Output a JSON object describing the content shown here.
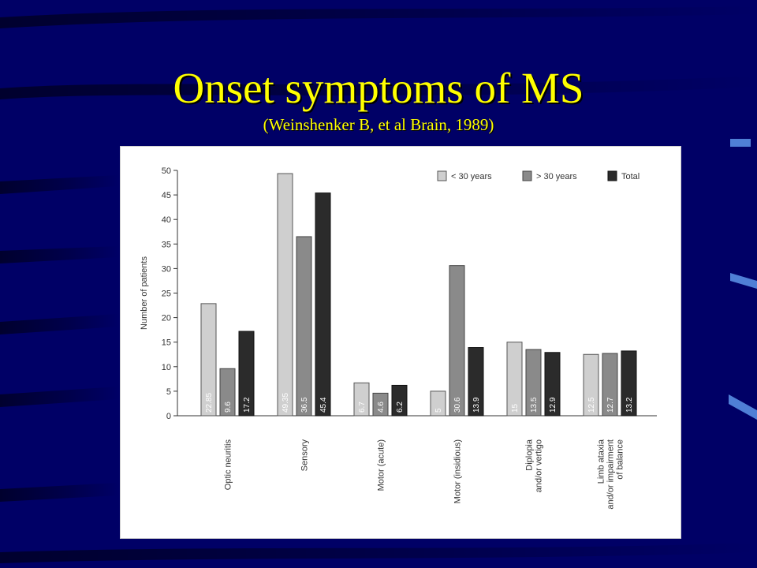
{
  "slide": {
    "title": "Onset symptoms of MS",
    "subtitle": "(Weinshenker B, et al Brain, 1989)"
  },
  "colors": {
    "background": "#000066",
    "title": "#ffff00",
    "under_30": "#cfcfcf",
    "over_30": "#8a8a8a",
    "total": "#2b2b2b"
  },
  "chart_data": {
    "type": "bar",
    "ylabel": "Number of patients",
    "xlabel": "",
    "ylim": [
      0,
      50
    ],
    "yticks": [
      0,
      5,
      10,
      15,
      20,
      25,
      30,
      35,
      40,
      45,
      50
    ],
    "legend_position": "top-right",
    "grid": false,
    "categories": [
      [
        "Optic neuritis"
      ],
      [
        "Sensory"
      ],
      [
        "Motor (acute)"
      ],
      [
        "Motor (insidious)"
      ],
      [
        "Diplopia",
        "and/or vertigo"
      ],
      [
        "Limb ataxia",
        "and/or impairment",
        "of balance"
      ]
    ],
    "series": [
      {
        "name": "< 30 years",
        "values": [
          22.85,
          49.35,
          6.7,
          5,
          15,
          12.5
        ],
        "labels": [
          "22.85",
          "49.35",
          "6.7",
          "5",
          "15",
          "12.5"
        ]
      },
      {
        "name": "> 30 years",
        "values": [
          9.6,
          36.5,
          4.6,
          30.6,
          13.5,
          12.7
        ],
        "labels": [
          "9.6",
          "36.5",
          "4.6",
          "30.6",
          "13.5",
          "12.7"
        ]
      },
      {
        "name": "Total",
        "values": [
          17.2,
          45.4,
          6.2,
          13.9,
          12.9,
          13.2
        ],
        "labels": [
          "17.2",
          "45.4",
          "6.2",
          "13.9",
          "12.9",
          "13.2"
        ]
      }
    ]
  }
}
